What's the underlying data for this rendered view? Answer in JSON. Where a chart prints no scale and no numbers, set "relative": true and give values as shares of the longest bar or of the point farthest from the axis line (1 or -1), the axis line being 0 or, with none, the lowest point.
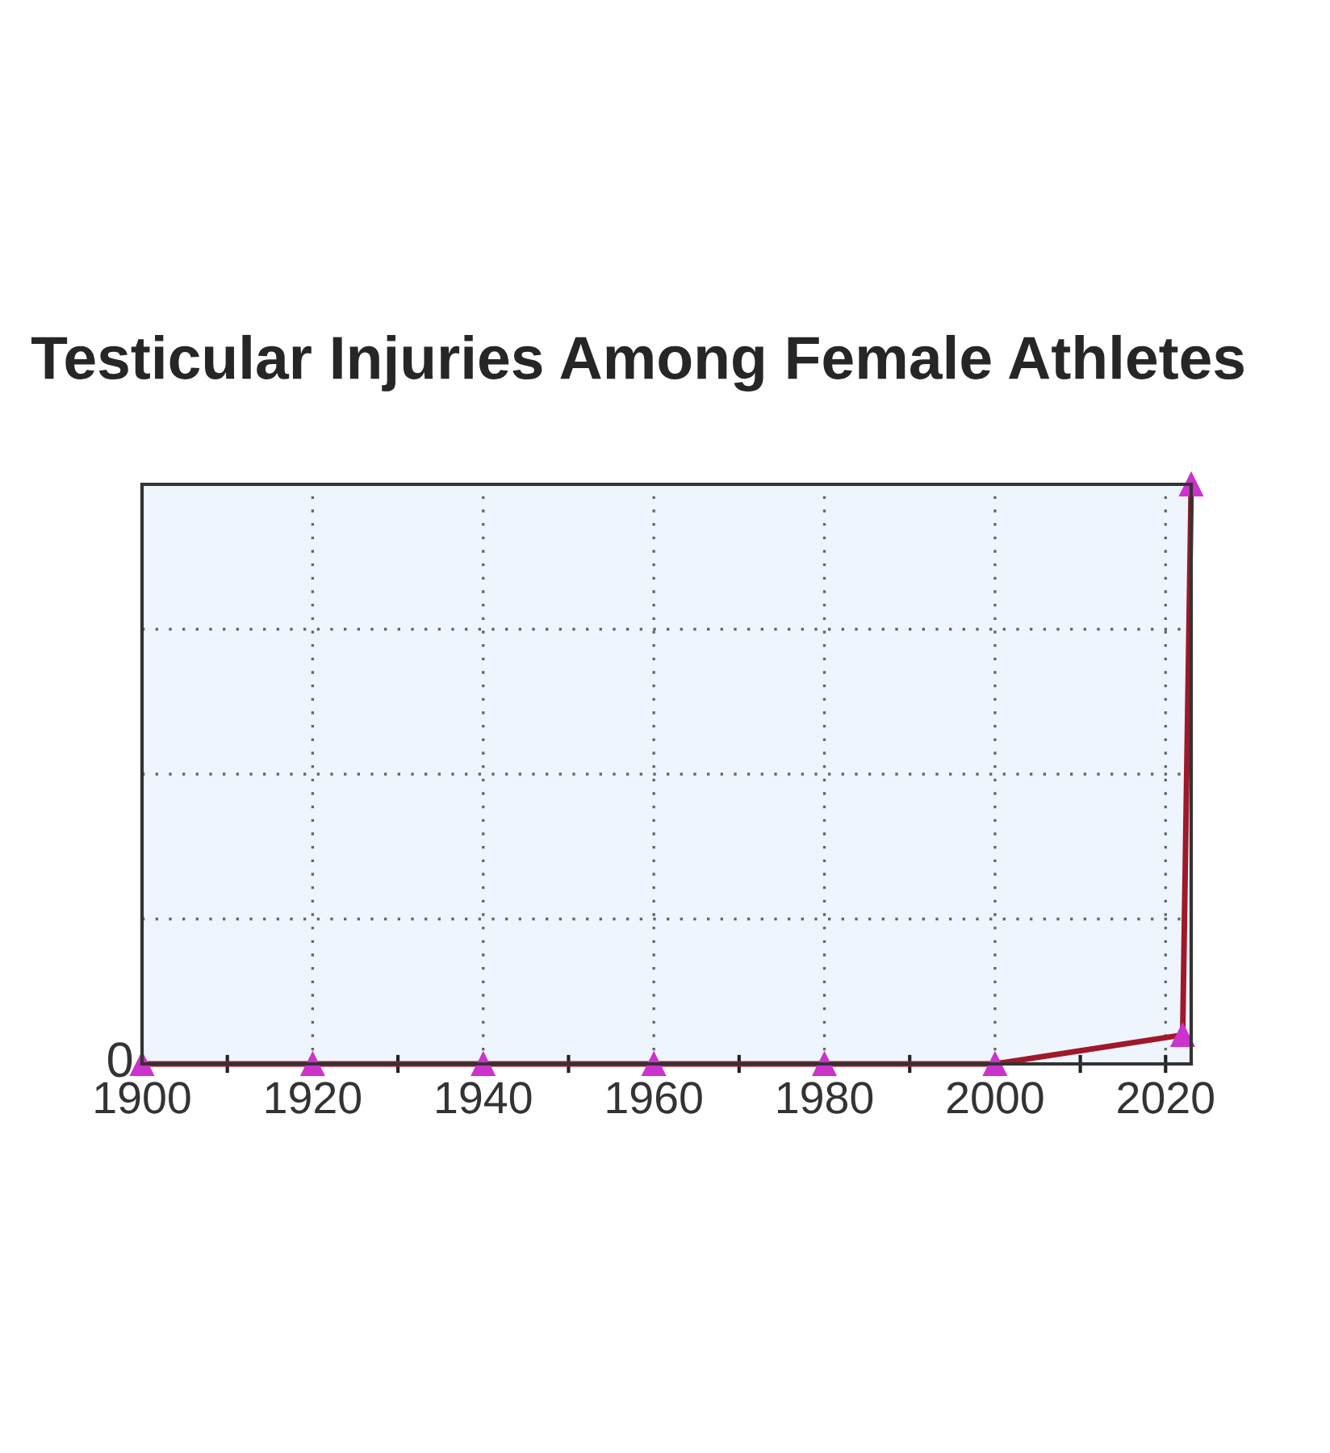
{
  "chart_data": {
    "type": "line",
    "title": "Testicular Injuries Among Female Athletes",
    "relative": true,
    "x": [
      1900,
      1920,
      1940,
      1960,
      1980,
      2000,
      2022,
      2023
    ],
    "series": [
      {
        "color": "#a0182a",
        "values": [
          0,
          0,
          0,
          0,
          0,
          0,
          0.05,
          1
        ]
      }
    ],
    "xlim": [
      1900,
      2023
    ],
    "xticks": [
      1900,
      {
        "value": 1910,
        "label": null
      },
      1920,
      {
        "value": 1930,
        "label": null
      },
      1940,
      {
        "value": 1950,
        "label": null
      },
      1960,
      {
        "value": 1970,
        "label": null
      },
      1980,
      {
        "value": 1990,
        "label": null
      },
      2000,
      {
        "value": 2010,
        "label": null
      },
      2020
    ],
    "annotations": [
      "0"
    ],
    "marker": "triangle",
    "line_style": "solid",
    "grid": true,
    "legend": false
  }
}
